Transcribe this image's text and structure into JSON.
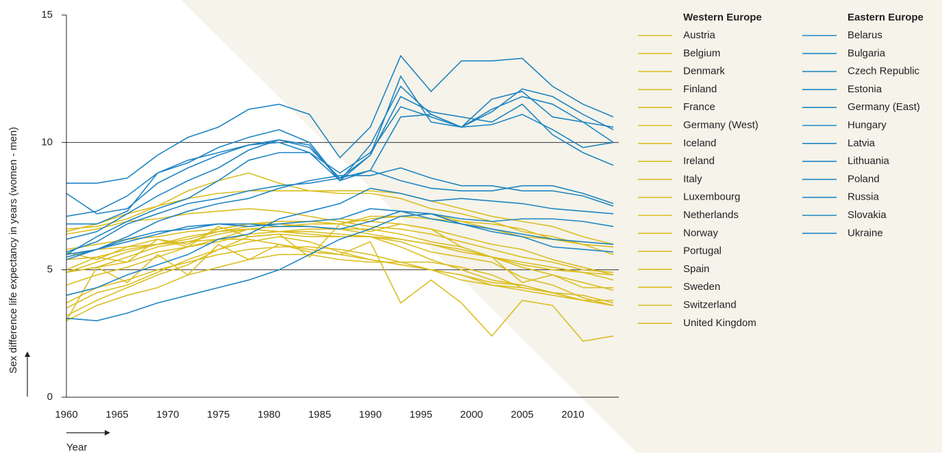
{
  "chart_data": {
    "type": "line",
    "y_label": "Sex difference life expectancy in years (women - men)",
    "x_label": "Year",
    "x": [
      1960,
      1963,
      1966,
      1969,
      1972,
      1975,
      1978,
      1981,
      1984,
      1987,
      1990,
      1993,
      1996,
      1999,
      2002,
      2005,
      2008,
      2011,
      2014
    ],
    "xlim": [
      1960,
      2014
    ],
    "xticks": [
      1960,
      1965,
      1970,
      1975,
      1980,
      1985,
      1990,
      1995,
      2000,
      2005,
      2010
    ],
    "ylim": [
      0,
      15
    ],
    "yticks": [
      0,
      5,
      10,
      15
    ],
    "grid": true,
    "groups": [
      {
        "name": "Western Europe",
        "color": "#dbbd22",
        "series": [
          {
            "name": "Austria",
            "values": [
              6.4,
              6.6,
              6.9,
              7.0,
              7.2,
              7.3,
              7.4,
              7.3,
              7.1,
              6.9,
              6.7,
              6.6,
              6.4,
              6.1,
              5.8,
              5.5,
              5.3,
              5.0,
              4.9
            ]
          },
          {
            "name": "Belgium",
            "values": [
              5.8,
              6.0,
              6.2,
              6.3,
              6.5,
              6.6,
              6.8,
              6.9,
              6.9,
              7.0,
              6.9,
              6.8,
              6.6,
              6.3,
              6.0,
              5.8,
              5.4,
              5.1,
              4.8
            ]
          },
          {
            "name": "Denmark",
            "values": [
              3.7,
              4.3,
              4.6,
              5.0,
              5.3,
              5.6,
              5.8,
              5.9,
              5.9,
              5.8,
              5.6,
              5.3,
              5.0,
              4.8,
              4.4,
              4.3,
              4.1,
              4.0,
              3.7
            ]
          },
          {
            "name": "Finland",
            "values": [
              6.6,
              6.7,
              7.0,
              7.5,
              8.1,
              8.5,
              8.8,
              8.4,
              8.1,
              8.0,
              8.0,
              7.8,
              7.4,
              7.2,
              6.9,
              6.5,
              6.3,
              6.0,
              5.9
            ]
          },
          {
            "name": "France",
            "values": [
              6.5,
              6.8,
              7.2,
              7.5,
              7.8,
              8.0,
              8.1,
              8.1,
              8.1,
              8.1,
              8.1,
              8.0,
              7.7,
              7.4,
              7.1,
              6.9,
              6.7,
              6.3,
              6.0
            ]
          },
          {
            "name": "Germany (West)",
            "values": [
              4.9,
              5.3,
              5.7,
              6.0,
              6.3,
              6.5,
              6.7,
              6.8,
              6.7,
              6.6,
              6.4,
              6.2,
              6.0,
              5.8,
              5.5,
              5.2,
              5.0,
              4.9,
              4.8
            ]
          },
          {
            "name": "Iceland",
            "values": [
              3.0,
              5.1,
              4.5,
              5.6,
              4.8,
              6.0,
              5.4,
              6.0,
              5.8,
              5.6,
              6.1,
              3.7,
              4.6,
              3.7,
              2.4,
              3.8,
              3.6,
              2.2,
              2.4
            ]
          },
          {
            "name": "Ireland",
            "values": [
              3.0,
              3.6,
              4.0,
              4.3,
              4.8,
              5.1,
              5.4,
              5.6,
              5.6,
              5.4,
              5.3,
              5.3,
              5.3,
              5.1,
              4.8,
              4.3,
              4.1,
              3.8,
              3.6
            ]
          },
          {
            "name": "Italy",
            "values": [
              5.4,
              5.5,
              5.8,
              6.0,
              6.2,
              6.5,
              6.6,
              6.5,
              6.4,
              6.3,
              6.3,
              6.2,
              6.0,
              5.7,
              5.5,
              5.3,
              5.1,
              4.9,
              4.6
            ]
          },
          {
            "name": "Luxembourg",
            "values": [
              5.0,
              5.5,
              5.3,
              6.2,
              5.9,
              6.7,
              6.3,
              6.4,
              5.5,
              6.8,
              6.5,
              6.8,
              6.6,
              5.9,
              5.5,
              4.5,
              4.8,
              4.3,
              4.3
            ]
          },
          {
            "name": "Netherlands",
            "values": [
              4.4,
              4.8,
              5.1,
              5.5,
              5.9,
              6.1,
              6.4,
              6.5,
              6.5,
              6.4,
              6.3,
              5.9,
              5.4,
              5.0,
              4.6,
              4.4,
              4.1,
              3.8,
              3.6
            ]
          },
          {
            "name": "Norway",
            "values": [
              3.5,
              4.1,
              4.4,
              4.9,
              5.4,
              5.8,
              6.3,
              6.4,
              6.3,
              6.3,
              6.3,
              6.1,
              5.7,
              5.5,
              5.3,
              4.7,
              4.4,
              3.9,
              3.6
            ]
          },
          {
            "name": "Portugal",
            "values": [
              5.7,
              5.4,
              5.9,
              6.2,
              6.0,
              6.6,
              6.8,
              6.8,
              6.9,
              6.8,
              7.0,
              7.1,
              7.2,
              6.9,
              6.6,
              6.3,
              6.2,
              6.0,
              5.9
            ]
          },
          {
            "name": "Spain",
            "values": [
              4.9,
              5.1,
              5.3,
              5.7,
              5.9,
              6.2,
              6.6,
              6.7,
              6.8,
              6.8,
              7.1,
              7.1,
              7.0,
              6.9,
              6.8,
              6.6,
              6.2,
              6.0,
              5.6
            ]
          },
          {
            "name": "Sweden",
            "values": [
              3.2,
              3.8,
              4.3,
              4.8,
              5.2,
              5.8,
              6.1,
              6.3,
              6.1,
              5.7,
              5.4,
              5.2,
              5.0,
              4.6,
              4.4,
              4.2,
              4.0,
              3.8,
              3.8
            ]
          },
          {
            "name": "Switzerland",
            "values": [
              4.9,
              5.1,
              5.5,
              5.9,
              6.1,
              6.4,
              6.6,
              6.5,
              6.6,
              6.6,
              6.6,
              6.4,
              6.1,
              5.9,
              5.5,
              5.1,
              4.8,
              4.5,
              4.2
            ]
          },
          {
            "name": "United Kingdom",
            "values": [
              5.5,
              5.8,
              5.9,
              6.0,
              6.1,
              6.2,
              6.2,
              6.0,
              5.7,
              5.6,
              5.4,
              5.2,
              5.0,
              4.8,
              4.5,
              4.4,
              4.1,
              3.8,
              3.6
            ]
          }
        ]
      },
      {
        "name": "Eastern Europe",
        "color": "#1e84c2",
        "series": [
          {
            "name": "Belarus",
            "values": [
              8.0,
              7.2,
              7.4,
              8.4,
              9.0,
              9.5,
              9.9,
              10.0,
              9.6,
              8.5,
              8.9,
              11.0,
              11.1,
              10.6,
              11.3,
              11.8,
              11.5,
              10.8,
              10.6
            ]
          },
          {
            "name": "Bulgaria",
            "values": [
              3.1,
              3.0,
              3.3,
              3.7,
              4.0,
              4.3,
              4.6,
              5.0,
              5.6,
              6.2,
              6.6,
              7.1,
              7.2,
              7.0,
              6.9,
              7.0,
              7.0,
              6.9,
              6.7
            ]
          },
          {
            "name": "Czech Republic",
            "values": [
              5.5,
              5.8,
              6.1,
              6.4,
              6.7,
              6.8,
              6.7,
              6.8,
              6.9,
              7.0,
              7.4,
              7.3,
              7.0,
              6.8,
              6.6,
              6.4,
              6.2,
              6.1,
              6.0
            ]
          },
          {
            "name": "Estonia",
            "values": [
              6.8,
              6.8,
              7.3,
              8.8,
              9.3,
              9.6,
              9.9,
              10.1,
              9.9,
              8.5,
              9.5,
              11.8,
              11.2,
              11.0,
              10.8,
              11.5,
              10.3,
              9.6,
              9.1
            ]
          },
          {
            "name": "Germany (East)",
            "values": [
              5.6,
              5.8,
              6.2,
              6.5,
              6.6,
              6.8,
              6.8,
              6.7,
              6.7,
              6.6,
              6.9,
              7.3,
              7.2,
              6.8,
              6.5,
              6.3,
              5.9,
              5.8,
              5.7
            ]
          },
          {
            "name": "Hungary",
            "values": [
              5.4,
              5.8,
              6.3,
              6.9,
              7.3,
              7.6,
              7.8,
              8.2,
              8.5,
              8.7,
              8.7,
              9.0,
              8.6,
              8.3,
              8.3,
              8.1,
              8.1,
              7.9,
              7.5
            ]
          },
          {
            "name": "Latvia",
            "values": [
              7.1,
              7.3,
              7.9,
              8.8,
              9.2,
              9.8,
              10.2,
              10.5,
              10.0,
              8.5,
              9.9,
              12.2,
              11.1,
              10.6,
              11.2,
              12.1,
              11.8,
              11.1,
              10.5
            ]
          },
          {
            "name": "Lithuania",
            "values": [
              5.6,
              6.3,
              6.9,
              7.4,
              7.8,
              8.5,
              9.3,
              9.6,
              9.6,
              8.8,
              9.6,
              11.4,
              11.0,
              10.6,
              11.7,
              12.0,
              11.0,
              10.8,
              10.0
            ]
          },
          {
            "name": "Poland",
            "values": [
              5.7,
              6.1,
              6.8,
              7.2,
              7.6,
              7.8,
              8.1,
              8.3,
              8.4,
              8.6,
              8.9,
              8.5,
              8.2,
              8.1,
              8.1,
              8.3,
              8.3,
              8.0,
              7.6
            ]
          },
          {
            "name": "Russia",
            "values": [
              8.4,
              8.4,
              8.6,
              9.5,
              10.2,
              10.6,
              11.3,
              11.5,
              11.1,
              9.4,
              10.6,
              13.4,
              12.0,
              13.2,
              13.2,
              13.3,
              12.2,
              11.5,
              11.0
            ]
          },
          {
            "name": "Slovakia",
            "values": [
              4.0,
              4.3,
              4.8,
              5.2,
              5.6,
              6.2,
              6.4,
              7.0,
              7.3,
              7.6,
              8.2,
              8.0,
              7.7,
              7.8,
              7.7,
              7.6,
              7.4,
              7.3,
              7.2
            ]
          },
          {
            "name": "Ukraine",
            "values": [
              6.2,
              6.5,
              7.2,
              7.9,
              8.5,
              9.0,
              9.7,
              10.1,
              9.8,
              8.6,
              9.5,
              12.6,
              10.8,
              10.6,
              10.7,
              11.1,
              10.5,
              9.8,
              10.0
            ]
          }
        ]
      }
    ]
  }
}
